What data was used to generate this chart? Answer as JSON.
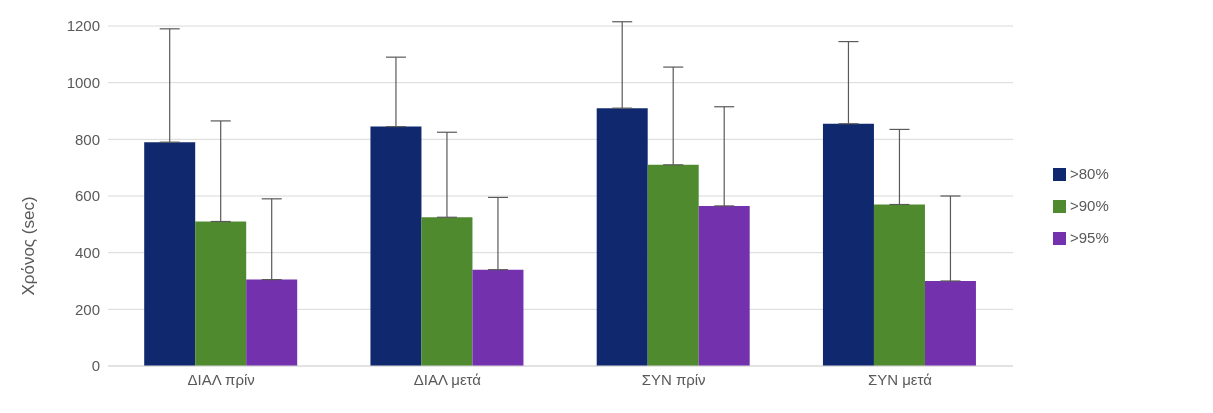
{
  "chart_data": {
    "type": "bar",
    "ylabel": "Χρόνος (sec)",
    "categories": [
      "ΔΙΑΛ πρίν",
      "ΔΙΑΛ μετά",
      "ΣΥΝ πρίν",
      "ΣΥΝ μετά"
    ],
    "series": [
      {
        "name": ">80%",
        "color": "#10296e",
        "values": [
          790,
          845,
          910,
          855
        ],
        "errors": [
          [
            790,
            1190
          ],
          [
            845,
            1090
          ],
          [
            910,
            1215
          ],
          [
            855,
            1145
          ]
        ]
      },
      {
        "name": ">90%",
        "color": "#4f8a2f",
        "values": [
          510,
          525,
          710,
          570
        ],
        "errors": [
          [
            510,
            865
          ],
          [
            525,
            825
          ],
          [
            710,
            1055
          ],
          [
            570,
            835
          ]
        ]
      },
      {
        "name": ">95%",
        "color": "#7431ad",
        "values": [
          305,
          340,
          565,
          300
        ],
        "errors": [
          [
            305,
            590
          ],
          [
            340,
            595
          ],
          [
            565,
            915
          ],
          [
            300,
            600
          ]
        ]
      }
    ],
    "ylim": [
      0,
      1200
    ],
    "yticks": [
      0,
      200,
      400,
      600,
      800,
      1000,
      1200
    ],
    "grid": "y",
    "legend": "right"
  }
}
